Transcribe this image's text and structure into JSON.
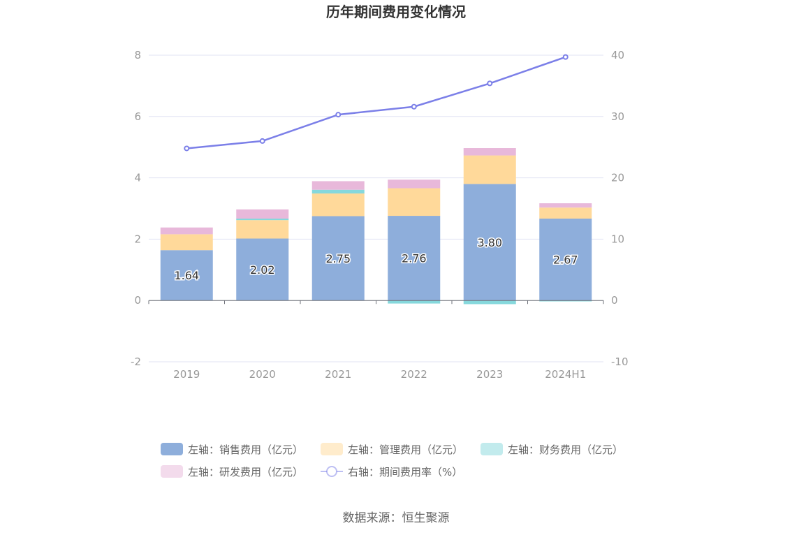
{
  "chart_data": {
    "type": "bar",
    "title": "历年期间费用变化情况",
    "categories": [
      "2019",
      "2020",
      "2021",
      "2022",
      "2023",
      "2024H1"
    ],
    "left_axis": {
      "ticks": [
        "-2",
        "0",
        "2",
        "4",
        "6",
        "8"
      ],
      "ylim": [
        -2,
        8
      ]
    },
    "right_axis": {
      "ticks": [
        "-10",
        "0",
        "10",
        "20",
        "30",
        "40"
      ],
      "ylim": [
        -10,
        40
      ]
    },
    "series": [
      {
        "name": "左轴：销售费用（亿元）",
        "axis": "left",
        "kind": "bar",
        "color": "#8eaedb",
        "values": [
          1.64,
          2.02,
          2.75,
          2.76,
          3.8,
          2.67
        ],
        "labels": [
          "1.64",
          "2.02",
          "2.75",
          "2.76",
          "3.80",
          "2.67"
        ]
      },
      {
        "name": "左轴：管理费用（亿元）",
        "axis": "left",
        "kind": "bar",
        "color": "#ffd99a",
        "values": [
          0.52,
          0.6,
          0.74,
          0.9,
          0.93,
          0.36
        ]
      },
      {
        "name": "左轴：财务费用（亿元）",
        "axis": "left",
        "kind": "bar",
        "color": "#86d8dc",
        "values": [
          0.0,
          0.05,
          0.12,
          -0.1,
          -0.12,
          -0.03
        ]
      },
      {
        "name": "左轴：研发费用（亿元）",
        "axis": "left",
        "kind": "bar",
        "color": "#e8b8da",
        "values": [
          0.22,
          0.3,
          0.28,
          0.28,
          0.24,
          0.14
        ]
      },
      {
        "name": "右轴：期间费用率（%）",
        "axis": "right",
        "kind": "line",
        "color": "#7b7fe8",
        "values": [
          24.8,
          26.0,
          30.3,
          31.6,
          35.4,
          39.7
        ]
      }
    ],
    "source": "数据来源：恒生聚源"
  }
}
